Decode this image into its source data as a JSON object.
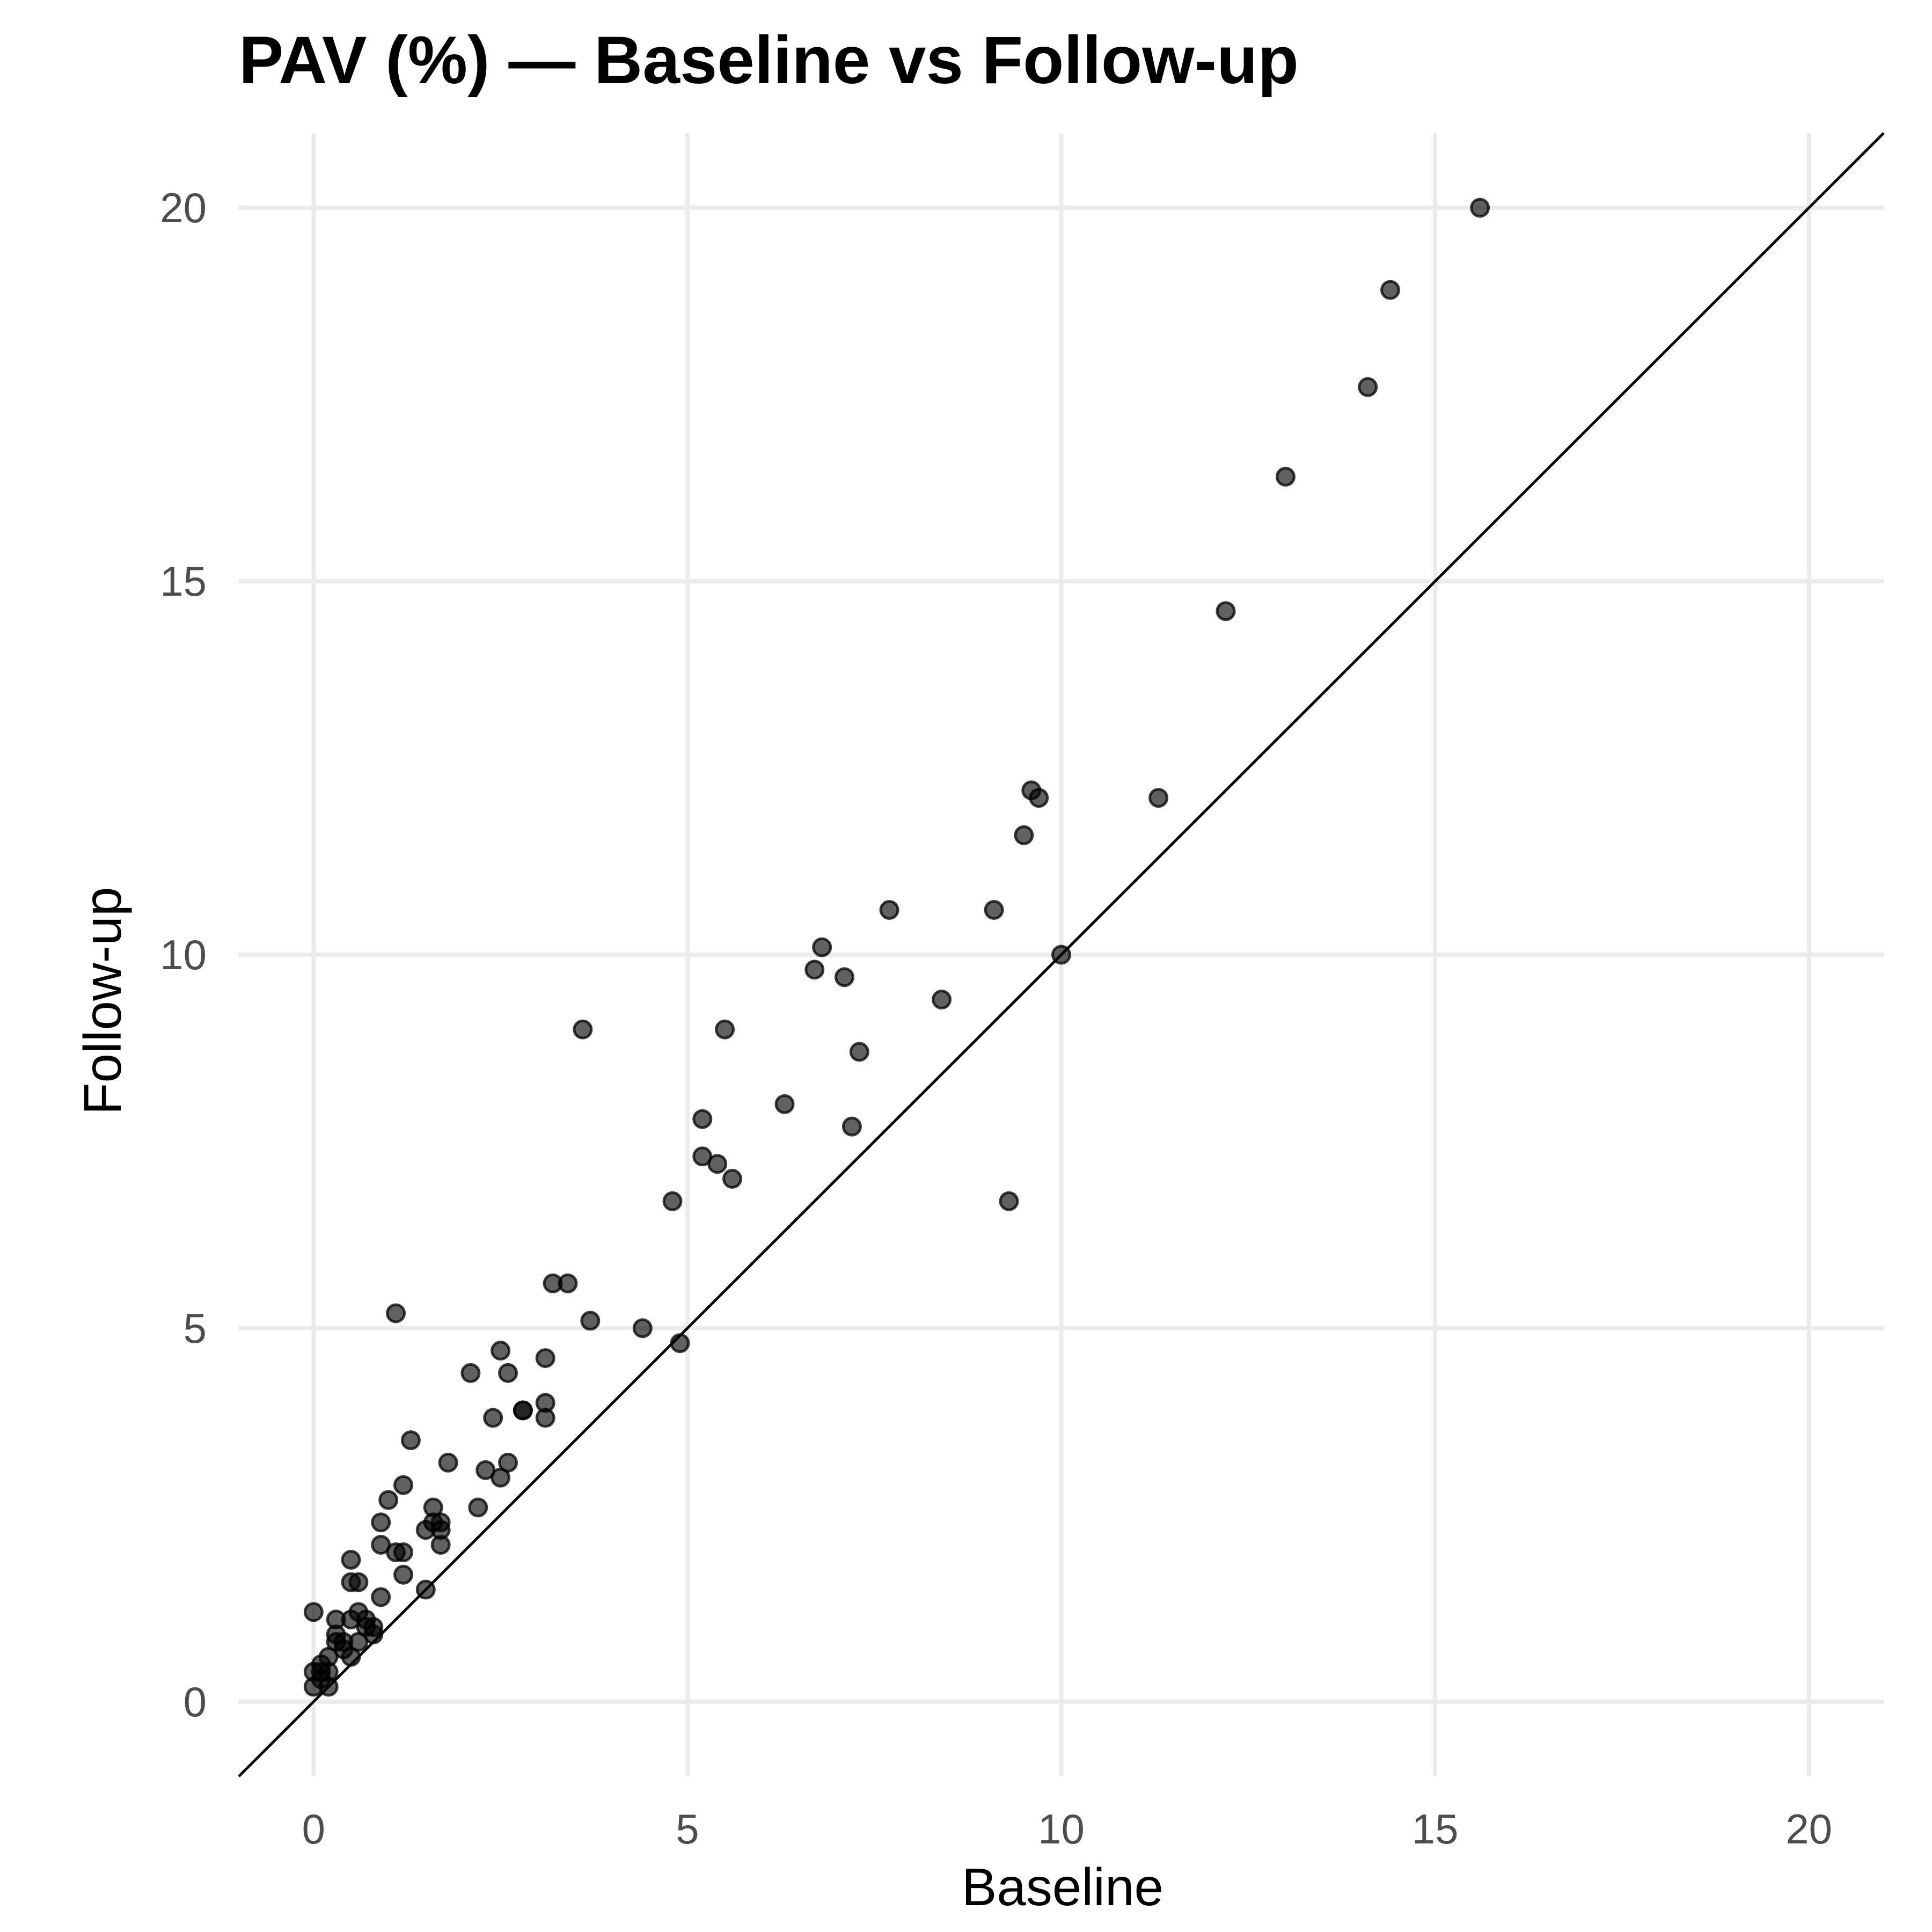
{
  "chart_data": {
    "type": "scatter",
    "title": "PAV (%) — Baseline vs Follow-up",
    "xlabel": "Baseline",
    "ylabel": "Follow-up",
    "xlim": [
      -1,
      21
    ],
    "ylim": [
      -1,
      21
    ],
    "x_ticks": [
      0,
      5,
      10,
      15,
      20
    ],
    "y_ticks": [
      0,
      5,
      10,
      15,
      20
    ],
    "grid": true,
    "legend": "none",
    "reference_line": {
      "type": "identity",
      "slope": 1,
      "intercept": 0
    },
    "point_color": "#000000",
    "series": [
      {
        "x": [
          15.6,
          14.4,
          14.1,
          13.0,
          12.2,
          11.3,
          10.0,
          9.6,
          9.7,
          9.5,
          9.3,
          9.1,
          8.4,
          7.7,
          7.3,
          7.2,
          7.1,
          6.8,
          6.7,
          6.3,
          5.6,
          5.5,
          5.4,
          5.2,
          5.2,
          4.9,
          4.8,
          4.4,
          3.7,
          3.6,
          3.4,
          3.2,
          3.1,
          3.1,
          3.1,
          2.8,
          2.8,
          2.6,
          2.6,
          2.5,
          2.5,
          2.4,
          2.3,
          2.2,
          2.1,
          1.8,
          1.7,
          1.7,
          1.7,
          1.6,
          1.6,
          1.5,
          1.5,
          1.3,
          1.2,
          1.2,
          1.2,
          1.1,
          1.1,
          1.0,
          0.9,
          0.9,
          0.9,
          0.8,
          0.8,
          0.7,
          0.7,
          0.6,
          0.6,
          0.6,
          0.5,
          0.5,
          0.5,
          0.5,
          0.4,
          0.4,
          0.3,
          0.3,
          0.3,
          0.2,
          0.2,
          0.2,
          0.1,
          0.1,
          0.1,
          0.0,
          0.0,
          0.0
        ],
        "y": [
          20.0,
          18.9,
          17.6,
          16.4,
          14.6,
          12.1,
          10.0,
          12.2,
          12.1,
          11.6,
          6.7,
          10.6,
          9.4,
          10.6,
          8.7,
          7.7,
          9.7,
          10.1,
          9.8,
          8.0,
          7.0,
          9.0,
          7.2,
          7.8,
          7.3,
          4.8,
          6.7,
          5.0,
          5.1,
          9.0,
          5.6,
          5.6,
          4.6,
          4.0,
          3.8,
          3.9,
          3.9,
          4.4,
          3.2,
          4.7,
          3.0,
          3.8,
          3.1,
          2.6,
          4.4,
          3.2,
          2.3,
          2.1,
          2.4,
          2.6,
          2.4,
          2.3,
          1.5,
          3.5,
          2.9,
          2.0,
          1.7,
          5.2,
          2.0,
          2.7,
          2.4,
          2.1,
          1.4,
          0.9,
          1.0,
          1.1,
          1.0,
          1.6,
          1.2,
          0.8,
          1.9,
          1.6,
          1.1,
          0.6,
          0.8,
          0.7,
          1.1,
          0.9,
          0.8,
          0.6,
          0.4,
          0.2,
          0.5,
          0.4,
          0.3,
          1.2,
          0.4,
          0.2
        ]
      }
    ]
  }
}
